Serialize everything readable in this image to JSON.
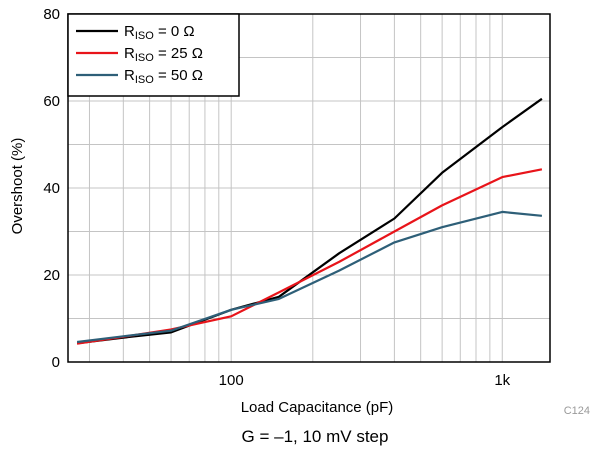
{
  "chart_data": {
    "type": "line",
    "x_scale": "log",
    "xlim": [
      25,
      1500
    ],
    "ylim": [
      0,
      80
    ],
    "grid": true,
    "legend_position": "top-left",
    "xlabel": "Load Capacitance (pF)",
    "ylabel": "Overshoot (%)",
    "x_tick_labels": [
      {
        "value": 100,
        "label": "100"
      },
      {
        "value": 1000,
        "label": "1k"
      }
    ],
    "y_tick_labels": [
      {
        "value": 0,
        "label": "0"
      },
      {
        "value": 20,
        "label": "20"
      },
      {
        "value": 40,
        "label": "40"
      },
      {
        "value": 60,
        "label": "60"
      },
      {
        "value": 80,
        "label": "80"
      }
    ],
    "series": [
      {
        "name_main": "R",
        "name_sub": "ISO",
        "name_rest": " = 0 Ω",
        "color": "#000000",
        "x": [
          27,
          40,
          60,
          100,
          150,
          250,
          400,
          600,
          1000,
          1400
        ],
        "y": [
          4.3,
          5.6,
          6.8,
          12,
          15,
          25,
          33,
          43.5,
          54,
          60.5
        ]
      },
      {
        "name_main": "R",
        "name_sub": "ISO",
        "name_rest": " = 25 Ω",
        "color": "#e8141a",
        "x": [
          27,
          40,
          60,
          100,
          150,
          250,
          400,
          600,
          1000,
          1400
        ],
        "y": [
          4.2,
          5.8,
          7.5,
          10.5,
          16,
          23,
          30,
          36,
          42.5,
          44.3
        ]
      },
      {
        "name_main": "R",
        "name_sub": "ISO",
        "name_rest": " = 50 Ω",
        "color": "#2e5f78",
        "x": [
          27,
          40,
          60,
          100,
          150,
          250,
          400,
          600,
          1000,
          1400
        ],
        "y": [
          4.6,
          5.9,
          7.2,
          12,
          14.5,
          21,
          27.5,
          31,
          34.5,
          33.6
        ]
      }
    ]
  },
  "figure_id": "C124",
  "caption": "G = –1, 10 mV step"
}
